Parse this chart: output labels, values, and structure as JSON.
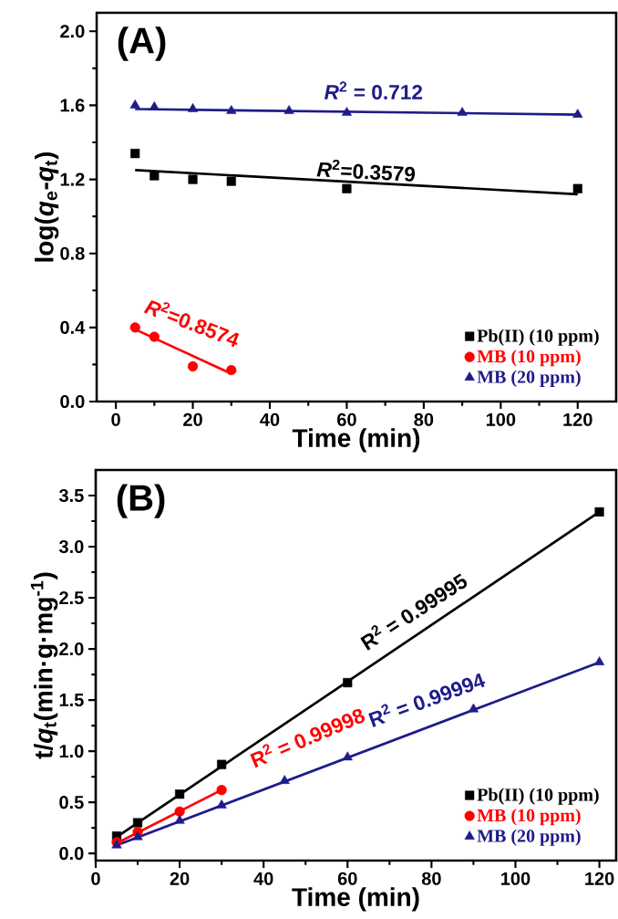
{
  "chart_data": [
    {
      "type": "scatter",
      "xlabel": "Time (min)",
      "ylabel": "log(*q*$_{e}$-*q*$_{t}$)",
      "xlim": [
        -5,
        130
      ],
      "ylim": [
        0,
        2.1
      ],
      "xticks": [
        0,
        20,
        40,
        60,
        80,
        100,
        120
      ],
      "yticks": [
        {
          "value": 0,
          "label": "0.0"
        },
        {
          "value": 0.4,
          "label": "0.4"
        },
        {
          "value": 0.8,
          "label": "0.8"
        },
        {
          "value": 1.2,
          "label": "1.2"
        },
        {
          "value": 1.6,
          "label": "1.6"
        },
        {
          "value": 2.0,
          "label": "2.0"
        }
      ],
      "legend": "bottom right",
      "series": [
        {
          "name": "Pb(II) (10 ppm)",
          "color": "#000000",
          "marker": "square",
          "x": [
            5,
            10,
            20,
            30,
            60,
            120
          ],
          "values": [
            1.34,
            1.22,
            1.2,
            1.19,
            1.15,
            1.15
          ]
        },
        {
          "name": "MB (10 ppm)",
          "color": "#ff0000",
          "marker": "circle",
          "x": [
            5,
            10,
            20,
            30
          ],
          "values": [
            0.4,
            0.35,
            0.19,
            0.17
          ]
        },
        {
          "name": "MB (20 ppm)",
          "color": "#1e1b8a",
          "marker": "triangle",
          "x": [
            5,
            10,
            20,
            30,
            45,
            60,
            90,
            120
          ],
          "values": [
            1.6,
            1.59,
            1.58,
            1.57,
            1.57,
            1.56,
            1.56,
            1.55
          ]
        },
        {
          "type": "line",
          "color": "#000000",
          "marker": "none",
          "x": [
            5,
            120
          ],
          "values": [
            1.25,
            1.12
          ]
        },
        {
          "type": "line",
          "color": "#ff0000",
          "marker": "none",
          "x": [
            5,
            30
          ],
          "values": [
            0.39,
            0.15
          ]
        },
        {
          "type": "line",
          "color": "#1e1b8a",
          "marker": "none",
          "x": [
            5,
            120
          ],
          "values": [
            1.58,
            1.55
          ]
        }
      ],
      "annotations": [
        "(A)",
        "*R*$^{2}$ = 0.712",
        "*R*$^{2}$=0.3579",
        "*R*$^{2}$=0.8574"
      ]
    },
    {
      "type": "scatter",
      "xlabel": "Time (min)",
      "ylabel": "t/*q*$_{t}$(min·g·mg$^{-1}$)",
      "xlim": [
        0,
        124
      ],
      "ylim": [
        -0.07,
        3.75
      ],
      "xticks": [
        0,
        20,
        40,
        60,
        80,
        100,
        120
      ],
      "yticks": [
        {
          "value": 0,
          "label": "0.0"
        },
        {
          "value": 0.5,
          "label": "0.5"
        },
        {
          "value": 1.0,
          "label": "1.0"
        },
        {
          "value": 1.5,
          "label": "1.5"
        },
        {
          "value": 2.0,
          "label": "2.0"
        },
        {
          "value": 2.5,
          "label": "2.5"
        },
        {
          "value": 3.0,
          "label": "3.0"
        },
        {
          "value": 3.5,
          "label": "3.5"
        }
      ],
      "legend": "bottom right",
      "series": [
        {
          "name": "Pb(II) (10 ppm)",
          "color": "#000000",
          "marker": "square",
          "x": [
            5,
            10,
            20,
            30,
            60,
            120
          ],
          "values": [
            0.17,
            0.3,
            0.58,
            0.87,
            1.67,
            3.34
          ]
        },
        {
          "name": "MB (10 ppm)",
          "color": "#ff0000",
          "marker": "circle",
          "x": [
            5,
            10,
            20,
            30
          ],
          "values": [
            0.11,
            0.21,
            0.41,
            0.62
          ]
        },
        {
          "name": "MB (20 ppm)",
          "color": "#1e1b8a",
          "marker": "triangle",
          "x": [
            5,
            10,
            20,
            30,
            45,
            60,
            90,
            120
          ],
          "values": [
            0.08,
            0.16,
            0.32,
            0.47,
            0.71,
            0.94,
            1.41,
            1.87
          ]
        },
        {
          "type": "line",
          "color": "#000000",
          "marker": "none",
          "x": [
            5,
            120
          ],
          "values": [
            0.16,
            3.34
          ]
        },
        {
          "type": "line",
          "color": "#ff0000",
          "marker": "none",
          "x": [
            5,
            30
          ],
          "values": [
            0.1,
            0.62
          ]
        },
        {
          "type": "line",
          "color": "#1e1b8a",
          "marker": "none",
          "x": [
            5,
            120
          ],
          "values": [
            0.08,
            1.87
          ]
        }
      ],
      "annotations": [
        "(B)",
        "R$^{2}$ = 0.99995",
        "R$^{2}$ = 0.99998",
        "R$^{2}$ = 0.99994"
      ]
    }
  ]
}
